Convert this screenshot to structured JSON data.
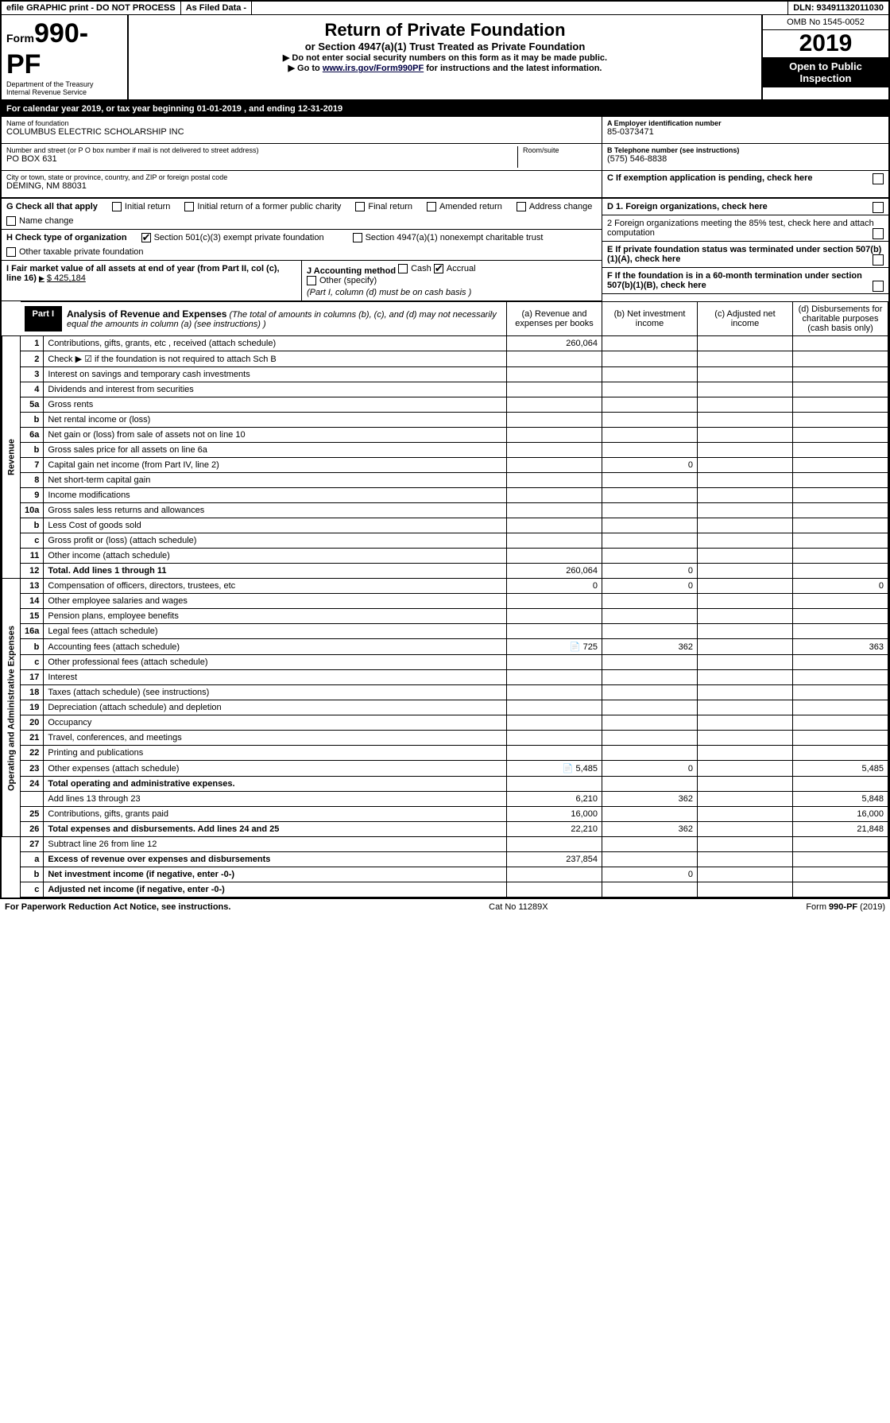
{
  "topbar": {
    "efile": "efile GRAPHIC print - DO NOT PROCESS",
    "asfiled": "As Filed Data -",
    "dln": "DLN: 93491132011030"
  },
  "header": {
    "form_prefix": "Form",
    "form_no": "990-PF",
    "dept": "Department of the Treasury",
    "irs": "Internal Revenue Service",
    "title": "Return of Private Foundation",
    "subtitle": "or Section 4947(a)(1) Trust Treated as Private Foundation",
    "instr1": "▶ Do not enter social security numbers on this form as it may be made public.",
    "instr2_pre": "▶ Go to ",
    "instr2_link": "www.irs.gov/Form990PF",
    "instr2_post": " for instructions and the latest information.",
    "omb": "OMB No 1545-0052",
    "year": "2019",
    "public": "Open to Public Inspection"
  },
  "calbar": {
    "text_pre": "For calendar year 2019, or tax year beginning ",
    "begin": "01-01-2019",
    "mid": " , and ending ",
    "end": "12-31-2019"
  },
  "info": {
    "name_lbl": "Name of foundation",
    "name": "COLUMBUS ELECTRIC SCHOLARSHIP INC",
    "addr_lbl": "Number and street (or P O  box number if mail is not delivered to street address)",
    "addr": "PO BOX 631",
    "room_lbl": "Room/suite",
    "city_lbl": "City or town, state or province, country, and ZIP or foreign postal code",
    "city": "DEMING, NM  88031",
    "ein_lbl": "A Employer identification number",
    "ein": "85-0373471",
    "tel_lbl": "B Telephone number (see instructions)",
    "tel": "(575) 546-8838",
    "pending": "C If exemption application is pending, check here"
  },
  "g": {
    "label": "G Check all that apply",
    "opts": [
      "Initial return",
      "Initial return of a former public charity",
      "Final return",
      "Amended return",
      "Address change",
      "Name change"
    ]
  },
  "h": {
    "label": "H Check type of organization",
    "opt1": "Section 501(c)(3) exempt private foundation",
    "opt2": "Section 4947(a)(1) nonexempt charitable trust",
    "opt3": "Other taxable private foundation"
  },
  "i": {
    "label": "I Fair market value of all assets at end of year (from Part II, col  (c), line 16)",
    "value": "$  425,184"
  },
  "j": {
    "label": "J Accounting method",
    "cash": "Cash",
    "accrual": "Accrual",
    "other": "Other (specify)",
    "note": "(Part I, column (d) must be on cash basis )"
  },
  "d": {
    "d1": "D 1. Foreign organizations, check here",
    "d2": "2 Foreign organizations meeting the 85% test, check here and attach computation",
    "e": "E  If private foundation status was terminated under section 507(b)(1)(A), check here",
    "f": "F  If the foundation is in a 60-month termination under section 507(b)(1)(B), check here"
  },
  "part1": {
    "tag": "Part I",
    "title": "Analysis of Revenue and Expenses",
    "note": " (The total of amounts in columns (b), (c), and (d) may not necessarily equal the amounts in column (a) (see instructions) )",
    "cols": {
      "a": "(a) Revenue and expenses per books",
      "b": "(b) Net investment income",
      "c": "(c) Adjusted net income",
      "d": "(d) Disbursements for charitable purposes (cash basis only)"
    }
  },
  "side": {
    "rev": "Revenue",
    "exp": "Operating and Administrative Expenses"
  },
  "rows": {
    "r1": {
      "n": "1",
      "d": "Contributions, gifts, grants, etc , received (attach schedule)",
      "a": "260,064"
    },
    "r2": {
      "n": "2",
      "d": "Check ▶ ☑ if the foundation is not required to attach Sch B"
    },
    "r3": {
      "n": "3",
      "d": "Interest on savings and temporary cash investments"
    },
    "r4": {
      "n": "4",
      "d": "Dividends and interest from securities"
    },
    "r5a": {
      "n": "5a",
      "d": "Gross rents"
    },
    "r5b": {
      "n": "b",
      "d": "Net rental income or (loss)"
    },
    "r6a": {
      "n": "6a",
      "d": "Net gain or (loss) from sale of assets not on line 10"
    },
    "r6b": {
      "n": "b",
      "d": "Gross sales price for all assets on line 6a"
    },
    "r7": {
      "n": "7",
      "d": "Capital gain net income (from Part IV, line 2)",
      "b": "0"
    },
    "r8": {
      "n": "8",
      "d": "Net short-term capital gain"
    },
    "r9": {
      "n": "9",
      "d": "Income modifications"
    },
    "r10a": {
      "n": "10a",
      "d": "Gross sales less returns and allowances"
    },
    "r10b": {
      "n": "b",
      "d": "Less  Cost of goods sold"
    },
    "r10c": {
      "n": "c",
      "d": "Gross profit or (loss) (attach schedule)"
    },
    "r11": {
      "n": "11",
      "d": "Other income (attach schedule)"
    },
    "r12": {
      "n": "12",
      "d": "Total. Add lines 1 through 11",
      "a": "260,064",
      "b": "0",
      "bold": true
    },
    "r13": {
      "n": "13",
      "d": "Compensation of officers, directors, trustees, etc",
      "a": "0",
      "b": "0",
      "dcol": "0"
    },
    "r14": {
      "n": "14",
      "d": "Other employee salaries and wages"
    },
    "r15": {
      "n": "15",
      "d": "Pension plans, employee benefits"
    },
    "r16a": {
      "n": "16a",
      "d": "Legal fees (attach schedule)"
    },
    "r16b": {
      "n": "b",
      "d": "Accounting fees (attach schedule)",
      "icon": true,
      "a": "725",
      "b": "362",
      "dcol": "363"
    },
    "r16c": {
      "n": "c",
      "d": "Other professional fees (attach schedule)"
    },
    "r17": {
      "n": "17",
      "d": "Interest"
    },
    "r18": {
      "n": "18",
      "d": "Taxes (attach schedule) (see instructions)"
    },
    "r19": {
      "n": "19",
      "d": "Depreciation (attach schedule) and depletion"
    },
    "r20": {
      "n": "20",
      "d": "Occupancy"
    },
    "r21": {
      "n": "21",
      "d": "Travel, conferences, and meetings"
    },
    "r22": {
      "n": "22",
      "d": "Printing and publications"
    },
    "r23": {
      "n": "23",
      "d": "Other expenses (attach schedule)",
      "icon": true,
      "a": "5,485",
      "b": "0",
      "dcol": "5,485"
    },
    "r24_1": {
      "n": "24",
      "d": "Total operating and administrative expenses.",
      "bold": true
    },
    "r24_2": {
      "n": "",
      "d": "Add lines 13 through 23",
      "a": "6,210",
      "b": "362",
      "dcol": "5,848"
    },
    "r25": {
      "n": "25",
      "d": "Contributions, gifts, grants paid",
      "a": "16,000",
      "dcol": "16,000"
    },
    "r26": {
      "n": "26",
      "d": "Total expenses and disbursements. Add lines 24 and 25",
      "a": "22,210",
      "b": "362",
      "dcol": "21,848",
      "bold": true
    },
    "r27": {
      "n": "27",
      "d": "Subtract line 26 from line 12"
    },
    "r27a": {
      "n": "a",
      "d": "Excess of revenue over expenses and disbursements",
      "a": "237,854",
      "bold": true
    },
    "r27b": {
      "n": "b",
      "d": "Net investment income (if negative, enter -0-)",
      "b": "0",
      "bold": true
    },
    "r27c": {
      "n": "c",
      "d": "Adjusted net income (if negative, enter -0-)",
      "bold": true
    }
  },
  "footer": {
    "left": "For Paperwork Reduction Act Notice, see instructions.",
    "mid": "Cat  No  11289X",
    "right": "Form 990-PF (2019)"
  }
}
